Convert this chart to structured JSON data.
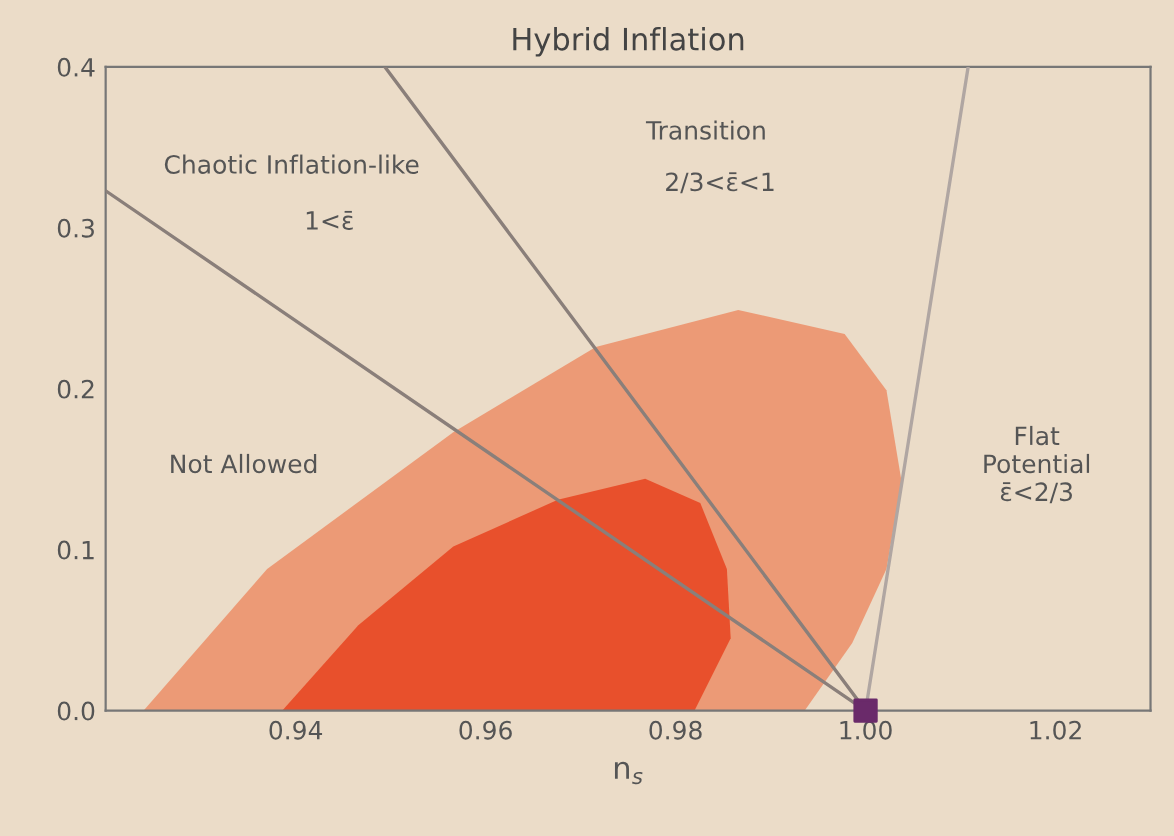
{
  "chart_data": {
    "type": "area",
    "title": "Hybrid Inflation",
    "xlabel": "n$_{s}$",
    "xlim": [
      0.92,
      1.03
    ],
    "ylim": [
      0.0,
      0.4
    ],
    "xticks": [
      0.94,
      0.96,
      0.98,
      {
        "value": 1.0,
        "label": "1.00"
      },
      1.02
    ],
    "yticks": [
      {
        "value": 0.0,
        "label": "0.0"
      },
      {
        "value": 0.1,
        "label": "0.1"
      },
      {
        "value": 0.2,
        "label": "0.2"
      },
      {
        "value": 0.3,
        "label": "0.3"
      },
      {
        "value": 0.4,
        "label": "0.4"
      }
    ],
    "grid": false,
    "legend": false,
    "series": [
      {
        "color": "#ec9a76",
        "x": [
          0.924,
          0.937,
          0.9566,
          0.9716,
          0.9866,
          0.9978,
          1.0022,
          1.0038,
          1.0022,
          0.9986,
          0.9936
        ],
        "values": [
          0.0,
          0.088,
          0.173,
          0.226,
          0.249,
          0.234,
          0.199,
          0.142,
          0.088,
          0.042,
          0.0
        ]
      },
      {
        "color": "#e8502c",
        "x": [
          0.9386,
          0.9466,
          0.9566,
          0.9676,
          0.9768,
          0.9826,
          0.9854,
          0.9858,
          0.982
        ],
        "values": [
          0.0,
          0.053,
          0.102,
          0.131,
          0.144,
          0.129,
          0.088,
          0.045,
          0.0
        ]
      },
      {
        "type": "line",
        "color": "#8a7f7a",
        "x": [
          0.92,
          1.0
        ],
        "values": [
          0.323,
          0.0
        ]
      },
      {
        "type": "line",
        "color": "#8a7f7a",
        "x": [
          0.9494,
          1.0
        ],
        "values": [
          0.4,
          0.0
        ]
      },
      {
        "type": "line",
        "color": "#b0a6a2",
        "x": [
          1.0108,
          1.0
        ],
        "values": [
          0.4,
          0.0
        ]
      },
      {
        "type": "scatter",
        "color": "#6a2a6a",
        "marker": "square",
        "x": [
          1.0
        ],
        "values": [
          0.0
        ]
      }
    ],
    "annotations": [
      "Chaotic Inflation-like",
      "1<ε̄",
      "Transition",
      "2/3<ε̄<1",
      "Not Allowed",
      "Flat\nPotential\nε̄<2/3"
    ]
  }
}
